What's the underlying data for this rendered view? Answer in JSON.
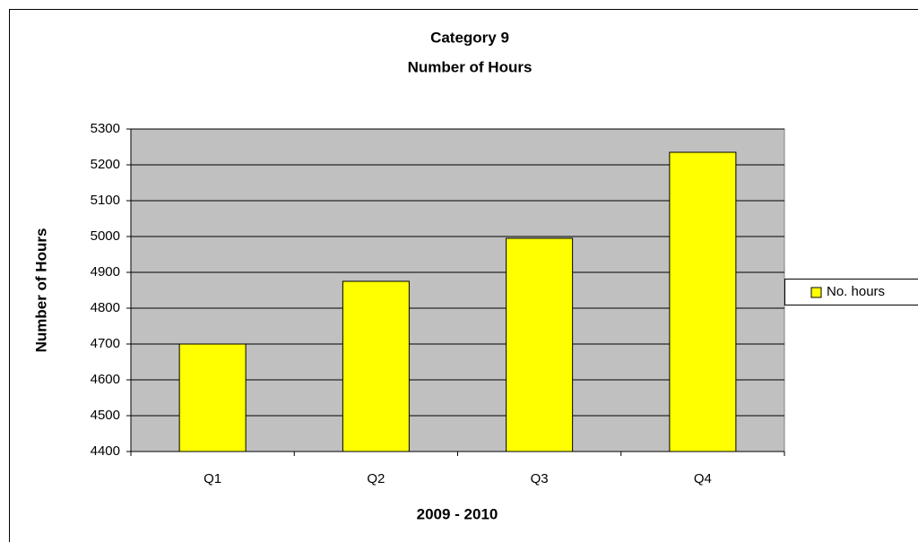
{
  "chart_data": {
    "type": "bar",
    "title": "Category 9",
    "subtitle": "Number of Hours",
    "x_label": "2009 - 2010",
    "y_label": "Number of Hours",
    "categories": [
      "Q1",
      "Q2",
      "Q3",
      "Q4"
    ],
    "series": [
      {
        "name": "No. hours",
        "color": "#ffff00",
        "values": [
          4700,
          4875,
          4995,
          5235
        ]
      }
    ],
    "ylim": [
      4400,
      5300
    ],
    "yticks": [
      4400,
      4500,
      4600,
      4700,
      4800,
      4900,
      5000,
      5100,
      5200,
      5300
    ],
    "grid": true,
    "legend": "right",
    "plot_background": "#c0c0c0"
  }
}
